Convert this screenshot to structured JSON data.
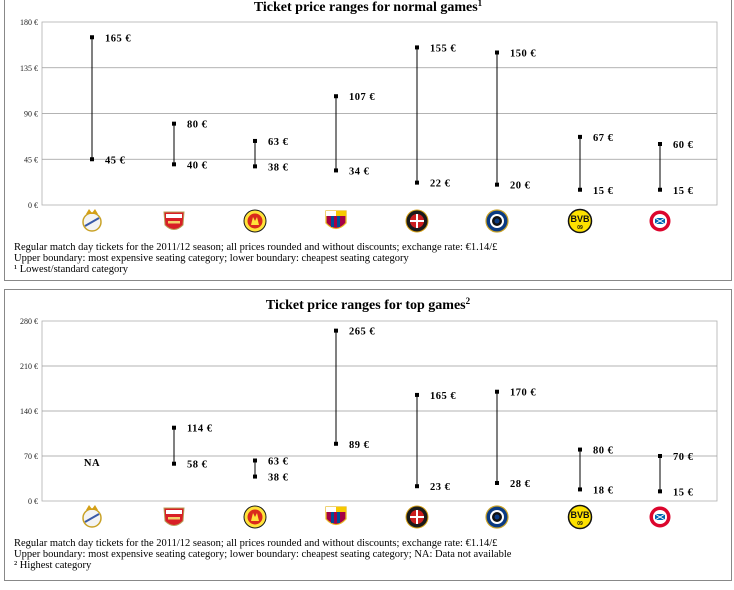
{
  "charts": [
    {
      "chart_data": {
        "type": "range",
        "title": "Ticket price ranges for normal games",
        "title_sup": "1",
        "xlabel": "",
        "ylabel": "",
        "ylim": [
          0,
          180
        ],
        "yticks": [
          0,
          45,
          90,
          135,
          180
        ],
        "ytick_labels": [
          "0 €",
          "45 €",
          "90 €",
          "135 €",
          "180 €"
        ],
        "grid": true,
        "categories": [
          "real-madrid-logo",
          "arsenal-logo",
          "manchester-united-logo",
          "fc-barcelona-logo",
          "ac-milan-logo",
          "inter-milan-logo",
          "borussia-dortmund-logo",
          "bayern-munich-logo"
        ],
        "upper": [
          165,
          80,
          63,
          107,
          155,
          150,
          67,
          60
        ],
        "lower": [
          45,
          40,
          38,
          34,
          22,
          20,
          15,
          15
        ],
        "upper_labels": [
          "165 €",
          "80 €",
          "63 €",
          "107 €",
          "155 €",
          "150 €",
          "67 €",
          "60 €"
        ],
        "lower_labels": [
          "45 €",
          "40 €",
          "38 €",
          "34 €",
          "22 €",
          "20 €",
          "15 €",
          "15 €"
        ],
        "na_label": ""
      },
      "notes": [
        "Regular match day tickets for the 2011/12 season; all prices rounded and without discounts; exchange rate: €1.14/£",
        "Upper boundary: most expensive seating category; lower boundary: cheapest seating category",
        "¹ Lowest/standard category"
      ]
    },
    {
      "chart_data": {
        "type": "range",
        "title": "Ticket price ranges for top games",
        "title_sup": "2",
        "xlabel": "",
        "ylabel": "",
        "ylim": [
          0,
          280
        ],
        "yticks": [
          0,
          70,
          140,
          210,
          280
        ],
        "ytick_labels": [
          "0 €",
          "70 €",
          "140 €",
          "210 €",
          "280 €"
        ],
        "grid": true,
        "categories": [
          "real-madrid-logo",
          "arsenal-logo",
          "manchester-united-logo",
          "fc-barcelona-logo",
          "ac-milan-logo",
          "inter-milan-logo",
          "borussia-dortmund-logo",
          "bayern-munich-logo"
        ],
        "upper": [
          null,
          114,
          63,
          265,
          165,
          170,
          80,
          70
        ],
        "lower": [
          null,
          58,
          38,
          89,
          23,
          28,
          18,
          15
        ],
        "upper_labels": [
          "",
          "114 €",
          "63 €",
          "265 €",
          "165 €",
          "170 €",
          "80 €",
          "70 €"
        ],
        "lower_labels": [
          "",
          "58 €",
          "38 €",
          "89 €",
          "23 €",
          "28 €",
          "18 €",
          "15 €"
        ],
        "na_label": "NA"
      },
      "notes": [
        "Regular match day tickets for the 2011/12 season; all prices rounded and without discounts; exchange rate: €1.14/£",
        "Upper boundary: most expensive seating category; lower boundary: cheapest seating category; NA: Data not available",
        "² Highest category"
      ]
    }
  ],
  "colors": {
    "stem": "#000000",
    "grid": "#9a9a9a",
    "frame": "#888888"
  }
}
